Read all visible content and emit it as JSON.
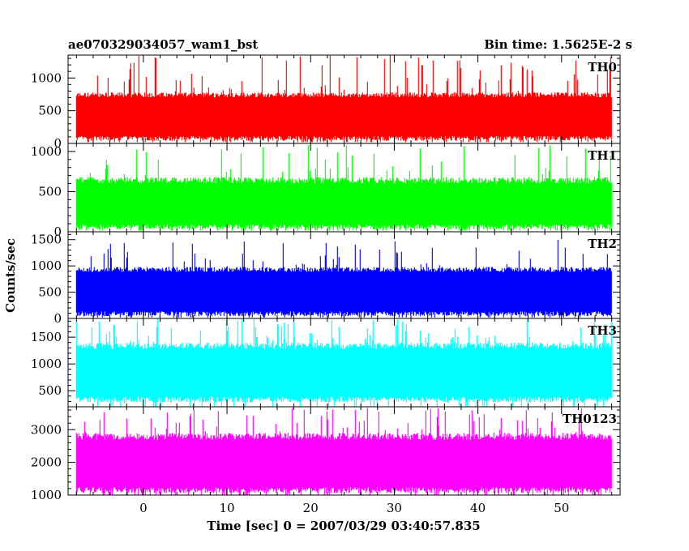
{
  "chart_data": {
    "type": "line",
    "title_left": "ae070329034057_wam1_bst",
    "title_right": "Bin time: 1.5625E-2 s",
    "xlabel": "Time [sec] 0 = 2007/03/29 03:40:57.835",
    "ylabel": "Counts/sec",
    "xlim": [
      -9,
      57
    ],
    "x_ticks": [
      "0",
      "10",
      "20",
      "30",
      "40",
      "50"
    ],
    "x_tick_values": [
      0,
      10,
      20,
      30,
      40,
      50
    ],
    "data_x_range": [
      -8,
      56
    ],
    "panels": [
      {
        "name": "TH0",
        "color": "#ff0000",
        "ylim": [
          0,
          1350
        ],
        "y_ticks": [
          "0",
          "500",
          "1000"
        ],
        "y_tick_values": [
          0,
          500,
          1000
        ],
        "floor": 40,
        "mean_top": 780,
        "min_top": 650,
        "max_top": 1350,
        "spike_rate": 0.1
      },
      {
        "name": "TH1",
        "color": "#00ff00",
        "ylim": [
          0,
          1100
        ],
        "y_ticks": [
          "0",
          "500",
          "1000"
        ],
        "y_tick_values": [
          0,
          500,
          1000
        ],
        "floor": 30,
        "mean_top": 680,
        "min_top": 550,
        "max_top": 1080,
        "spike_rate": 0.08
      },
      {
        "name": "TH2",
        "color": "#0000ff",
        "ylim": [
          0,
          1650
        ],
        "y_ticks": [
          "0",
          "500",
          "1000",
          "1500"
        ],
        "y_tick_values": [
          0,
          500,
          1000,
          1500
        ],
        "floor": 40,
        "mean_top": 980,
        "min_top": 820,
        "max_top": 1500,
        "spike_rate": 0.08
      },
      {
        "name": "TH3",
        "color": "#00ffff",
        "ylim": [
          200,
          1850
        ],
        "y_ticks": [
          "500",
          "1000",
          "1500"
        ],
        "y_tick_values": [
          500,
          1000,
          1500
        ],
        "floor": 280,
        "mean_top": 1400,
        "min_top": 1200,
        "max_top": 1850,
        "spike_rate": 0.12
      },
      {
        "name": "TH0123",
        "color": "#ff00ff",
        "ylim": [
          1000,
          3700
        ],
        "y_ticks": [
          "1000",
          "2000",
          "3000"
        ],
        "y_tick_values": [
          1000,
          2000,
          3000
        ],
        "floor": 1060,
        "mean_top": 2900,
        "min_top": 2550,
        "max_top": 3700,
        "spike_rate": 0.1
      }
    ]
  }
}
